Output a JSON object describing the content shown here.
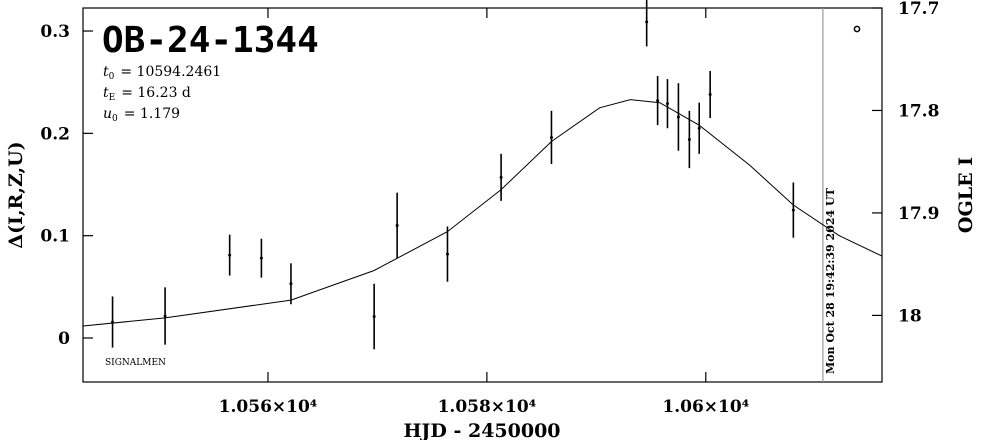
{
  "chart_data": {
    "type": "errorbar",
    "title": "OB-24-1344",
    "annotations": [
      {
        "var": "t",
        "sub": "0",
        "rest": "= 10594.2461"
      },
      {
        "var": "t",
        "sub": "E",
        "rest": "= 16.23 d"
      },
      {
        "var": "u",
        "sub": "0",
        "rest": "= 1.179"
      }
    ],
    "footnote": "SIGNALMEN",
    "xlabel": "HJD - 2450000",
    "ylabel": "Δ(I,R,Z,U)",
    "y2label": "OGLE I",
    "xlim": [
      10543.1,
      10616.1
    ],
    "xticks": [
      {
        "value": 10560,
        "label": "1.056×10⁴"
      },
      {
        "value": 10580,
        "label": "1.058×10⁴"
      },
      {
        "value": 10600,
        "label": "1.06×10⁴"
      }
    ],
    "ylim": [
      -0.043,
      0.3225
    ],
    "yticks": [
      0,
      0.1,
      0.2,
      0.3
    ],
    "y2lim": [
      18.065,
      17.7
    ],
    "y2ticks": [
      17.7,
      17.8,
      17.9,
      18
    ],
    "series": [
      {
        "color": "#000000",
        "x": [
          10545.8,
          10550.6,
          10556.5,
          10559.4,
          10562.1,
          10569.7,
          10571.8,
          10576.4,
          10581.3,
          10585.9,
          10594.6,
          10595.6,
          10596.5,
          10597.5,
          10598.5,
          10599.4,
          10600.4,
          10608.0
        ],
        "values": [
          0.0156,
          0.0215,
          0.081,
          0.078,
          0.053,
          0.021,
          0.11,
          0.082,
          0.157,
          0.196,
          0.309,
          0.232,
          0.229,
          0.216,
          0.194,
          0.205,
          0.238,
          0.125
        ],
        "errors": [
          0.025,
          0.028,
          0.02,
          0.019,
          0.02,
          0.032,
          0.032,
          0.027,
          0.023,
          0.026,
          0.024,
          0.024,
          0.024,
          0.033,
          0.028,
          0.025,
          0.023,
          0.027
        ]
      },
      {
        "color": "#000000",
        "x": [
          10543.1,
          10550.6,
          10562.1,
          10569.7,
          10576.4,
          10581.3,
          10585.9,
          10590.3,
          10593.1,
          10595.8,
          10599.4,
          10604.0,
          10608.0,
          10612.2,
          10616.1
        ],
        "values": [
          0.0117,
          0.0196,
          0.037,
          0.066,
          0.104,
          0.145,
          0.192,
          0.225,
          0.233,
          0.23,
          0.208,
          0.169,
          0.13,
          0.1,
          0.08
        ]
      }
    ],
    "vline": {
      "x": 10610.7,
      "label": "Mon Oct 28 19:42:39 2024 UT",
      "color": "#999999"
    }
  }
}
